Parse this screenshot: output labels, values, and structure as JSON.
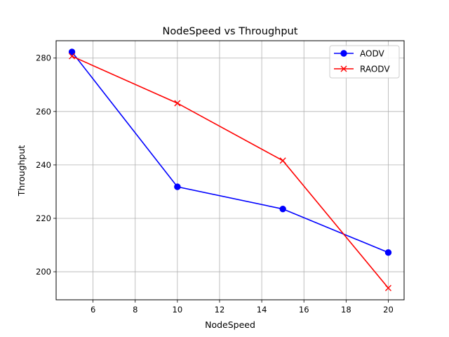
{
  "chart_data": {
    "type": "line",
    "title": "NodeSpeed vs Throughput",
    "xlabel": "NodeSpeed",
    "ylabel": "Throughput",
    "xlim": [
      4.25,
      20.75
    ],
    "ylim": [
      189.5,
      286.5
    ],
    "xticks": [
      6,
      8,
      10,
      12,
      14,
      16,
      18,
      20
    ],
    "yticks": [
      200,
      220,
      240,
      260,
      280
    ],
    "grid": true,
    "legend_position": "top-right",
    "series": [
      {
        "name": "AODV",
        "color": "#0000ff",
        "marker": "circle",
        "x": [
          5,
          10,
          15,
          20
        ],
        "y": [
          282.3,
          231.8,
          223.5,
          207.2
        ]
      },
      {
        "name": "RAODV",
        "color": "#ff0000",
        "marker": "x",
        "x": [
          5,
          10,
          15,
          20
        ],
        "y": [
          280.7,
          263.1,
          241.6,
          193.9
        ]
      }
    ]
  }
}
